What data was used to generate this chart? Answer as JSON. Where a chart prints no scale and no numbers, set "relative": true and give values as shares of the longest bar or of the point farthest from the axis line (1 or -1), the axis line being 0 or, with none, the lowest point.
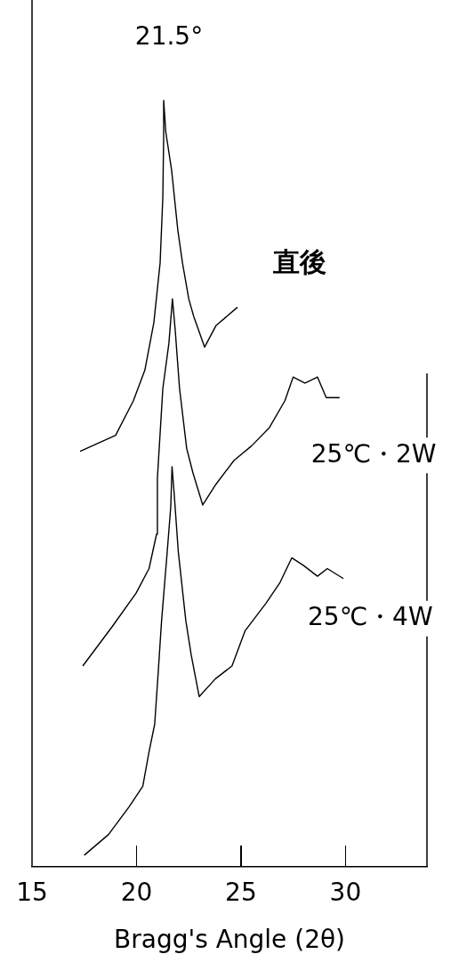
{
  "chart_data": {
    "type": "line",
    "relative": true,
    "xlabel": "Bragg's Angle (2θ)",
    "annotations": [
      "21.5°"
    ],
    "xlim": [
      15,
      33.9
    ],
    "xticks": [
      15,
      20,
      25,
      30
    ],
    "tick_labels": "x",
    "grid": false,
    "legend": false,
    "marker": "none",
    "line_style": "solid",
    "series": [
      {
        "name": "直後",
        "color": "#000000",
        "x": [
          17.3,
          19.0,
          19.85,
          20.4,
          20.83,
          21.13,
          21.26,
          21.3,
          21.3,
          21.4,
          21.68,
          21.98,
          22.2,
          22.5,
          22.74,
          23.26,
          23.8,
          24.83
        ],
        "values": [
          0.542,
          0.563,
          0.608,
          0.648,
          0.71,
          0.788,
          0.874,
          0.955,
          1,
          0.959,
          0.909,
          0.83,
          0.788,
          0.741,
          0.718,
          0.678,
          0.706,
          0.73
        ]
      },
      {
        "name": "25℃・2W",
        "color": "#000000",
        "x": [
          17.43,
          18.83,
          19.98,
          20.6,
          20.96,
          21.0,
          21.26,
          21.55,
          21.72,
          21.85,
          22.06,
          22.4,
          22.7,
          23.17,
          23.8,
          24.66,
          25.5,
          26.36,
          27.1,
          27.5,
          28.06,
          28.66,
          29.08,
          29.72
        ],
        "values": [
          0.262,
          0.313,
          0.357,
          0.389,
          0.434,
          0.507,
          0.624,
          0.683,
          0.741,
          0.701,
          0.624,
          0.546,
          0.514,
          0.472,
          0.499,
          0.53,
          0.549,
          0.573,
          0.608,
          0.639,
          0.631,
          0.639,
          0.612,
          0.612
        ]
      },
      {
        "name": "25℃・4W",
        "color": "#000000",
        "x": [
          17.5,
          18.66,
          19.64,
          20.3,
          20.6,
          20.87,
          21.04,
          21.2,
          21.47,
          21.64,
          21.7,
          21.8,
          22.0,
          22.36,
          22.62,
          23.0,
          23.77,
          24.57,
          25.2,
          26.2,
          26.87,
          27.43,
          28.0,
          28.66,
          29.13,
          29.9
        ],
        "values": [
          0.015,
          0.042,
          0.078,
          0.105,
          0.15,
          0.186,
          0.254,
          0.321,
          0.411,
          0.47,
          0.522,
          0.488,
          0.411,
          0.321,
          0.276,
          0.222,
          0.245,
          0.262,
          0.308,
          0.344,
          0.371,
          0.403,
          0.393,
          0.379,
          0.389,
          0.376
        ]
      }
    ]
  }
}
